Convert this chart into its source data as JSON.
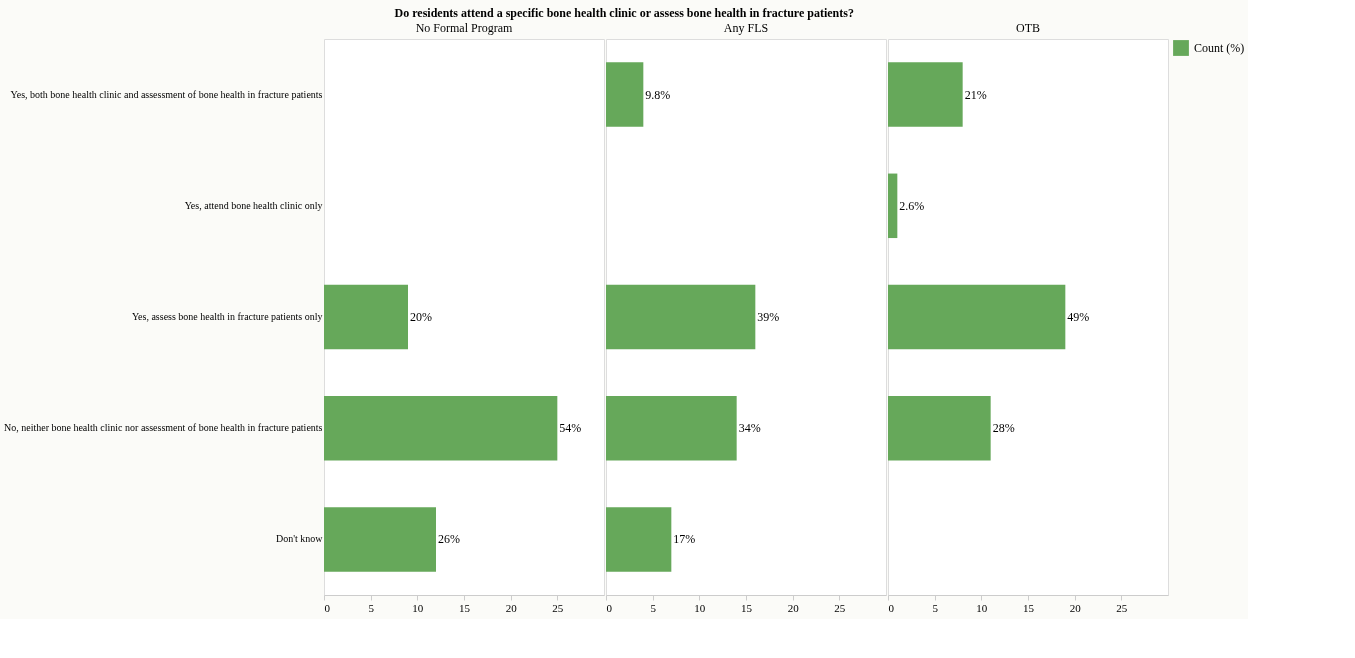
{
  "chart_data": [
    {
      "type": "bar",
      "orientation": "horizontal",
      "title": "Do residents attend a specific bone health clinic or assess bone health in fracture patients?",
      "subtitle": "No Formal Program",
      "categories": [
        "Yes, both bone health clinic and assessment of bone health in fracture patients",
        "Yes, attend bone health clinic only",
        "Yes, assess bone health in fracture patients only",
        "No, neither bone health clinic nor assessment of bone health in fracture patients",
        "Don't know"
      ],
      "series": [
        {
          "color": "#66a85a",
          "values": [
            null,
            null,
            9,
            25,
            12
          ]
        }
      ],
      "annotations": [
        {
          "text": "20%",
          "x": 9,
          "y": "Yes, assess bone health in fracture patients only"
        },
        {
          "text": "54%",
          "x": 25,
          "y": "No, neither bone health clinic nor assessment of bone health in fracture patients"
        },
        {
          "text": "26%",
          "x": 12,
          "y": "Don't know"
        }
      ],
      "xlim": [
        0,
        30
      ],
      "xticks": [
        0,
        5,
        10,
        15,
        20,
        25
      ],
      "grid": false
    },
    {
      "type": "bar",
      "orientation": "horizontal",
      "subtitle": "Any FLS",
      "categories": [
        "Yes, both bone health clinic and assessment of bone health in fracture patients",
        "Yes, attend bone health clinic only",
        "Yes, assess bone health in fracture patients only",
        "No, neither bone health clinic nor assessment of bone health in fracture patients",
        "Don't know"
      ],
      "series": [
        {
          "color": "#66a85a",
          "values": [
            4,
            null,
            16,
            14,
            7
          ]
        }
      ],
      "annotations": [
        {
          "text": "9.8%",
          "x": 4,
          "y": "Yes, both bone health clinic and assessment of bone health in fracture patients"
        },
        {
          "text": "39%",
          "x": 16,
          "y": "Yes, assess bone health in fracture patients only"
        },
        {
          "text": "34%",
          "x": 14,
          "y": "No, neither bone health clinic nor assessment of bone health in fracture patients"
        },
        {
          "text": "17%",
          "x": 7,
          "y": "Don't know"
        }
      ],
      "xlim": [
        0,
        30
      ],
      "xticks": [
        0,
        5,
        10,
        15,
        20,
        25
      ],
      "grid": false,
      "tick_labels": "x"
    },
    {
      "type": "bar",
      "orientation": "horizontal",
      "subtitle": "OTB",
      "categories": [
        "Yes, both bone health clinic and assessment of bone health in fracture patients",
        "Yes, attend bone health clinic only",
        "Yes, assess bone health in fracture patients only",
        "No, neither bone health clinic nor assessment of bone health in fracture patients",
        "Don't know"
      ],
      "series": [
        {
          "name": "Count (%)",
          "color": "#66a85a",
          "values": [
            8,
            1,
            19,
            11,
            null
          ]
        }
      ],
      "annotations": [
        {
          "text": "21%",
          "x": 8,
          "y": "Yes, both bone health clinic and assessment of bone health in fracture patients"
        },
        {
          "text": "2.6%",
          "x": 1,
          "y": "Yes, attend bone health clinic only"
        },
        {
          "text": "49%",
          "x": 19,
          "y": "Yes, assess bone health in fracture patients only"
        },
        {
          "text": "28%",
          "x": 11,
          "y": "No, neither bone health clinic nor assessment of bone health in fracture patients"
        }
      ],
      "xlim": [
        0,
        30
      ],
      "xticks": [
        0,
        5,
        10,
        15,
        20,
        25
      ],
      "grid": false,
      "tick_labels": "x",
      "legend": "right"
    }
  ]
}
